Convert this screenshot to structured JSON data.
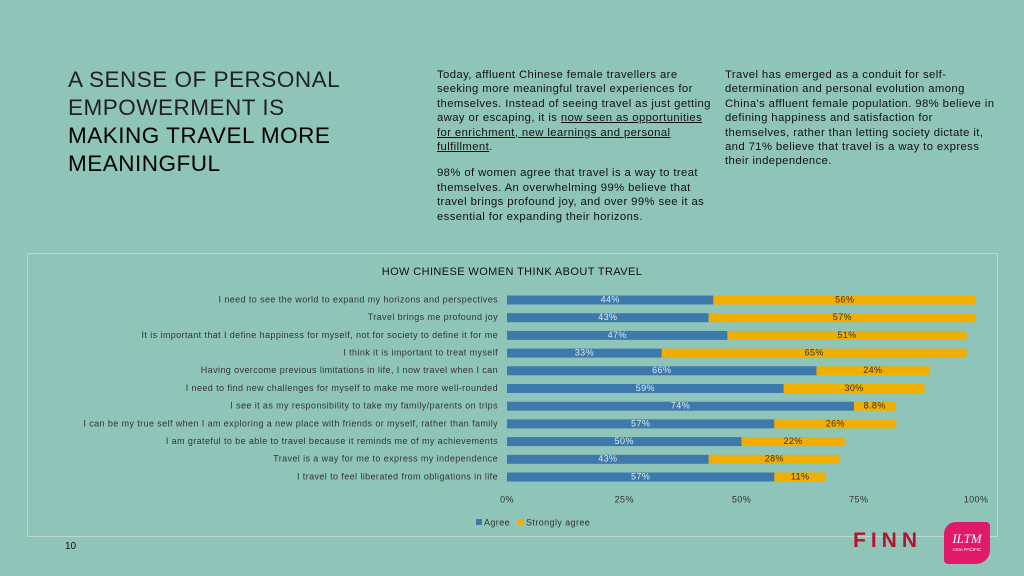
{
  "title_lines": [
    "A SENSE OF PERSONAL",
    "EMPOWERMENT IS",
    "MAKING TRAVEL MORE",
    "MEANINGFUL"
  ],
  "column_1": {
    "paragraph_1": [
      "Today, affluent Chinese female travellers are seeking more meaningful travel experiences for themselves. Instead of seeing travel as just getting away or escaping, it is ",
      "now seen as opportunities for enrichment, new learnings and personal fulfillment",
      "."
    ],
    "paragraph_2": "98% of women agree that travel is a way to treat themselves. An overwhelming 99% believe that travel brings profound joy, and over 99% see it as essential for expanding their horizons."
  },
  "column_2": "Travel has emerged as a conduit for self-determination and personal evolution among China's affluent female population. 98% believe in defining happiness and satisfaction for themselves, rather than letting society dictate it, and 71% believe that travel is a way to express their independence.",
  "chart_data": {
    "type": "stacked_bar_horizontal",
    "title": "HOW CHINESE WOMEN THINK ABOUT TRAVEL",
    "categories": [
      "I need to see the world to expand my horizons and perspectives",
      "Travel brings me profound joy",
      "It is important that I define happiness for myself, not for society to define it for me",
      "I think it is important to treat myself",
      "Having overcome previous limitations in life, I now travel when I can",
      "I need to find new challenges for myself to make me more well-rounded",
      "I see it as my responsibility to take my family/parents on trips",
      "I can be my true self when I am exploring a new place with friends or myself, rather than family",
      "I am grateful to be able to travel because it reminds me of my achievements",
      "Travel is a way for me to express my independence",
      "I travel to feel liberated from obligations in life"
    ],
    "series": [
      {
        "name": "Agree",
        "color": "#3d7aab",
        "values": [
          44,
          43,
          47,
          33,
          66,
          59,
          74,
          57,
          50,
          43,
          57
        ],
        "value_labels": [
          "44%",
          "43%",
          "47%",
          "33%",
          "66%",
          "59%",
          "74%",
          "57%",
          "50%",
          "43%",
          "57%"
        ]
      },
      {
        "name": "Strongly agree",
        "color": "#f0ae00",
        "values": [
          56,
          57,
          51,
          65,
          24,
          30,
          8.8,
          26,
          22,
          28,
          11
        ],
        "value_labels": [
          "56%",
          "57%",
          "51%",
          "65%",
          "24%",
          "30%",
          "8.8%",
          "26%",
          "22%",
          "28%",
          "11%"
        ]
      }
    ],
    "xlim": [
      0,
      100
    ],
    "xticks": [
      {
        "value": 0,
        "label": "0%"
      },
      {
        "value": 25,
        "label": "25%"
      },
      {
        "value": 50,
        "label": "50%"
      },
      {
        "value": 75,
        "label": "75%"
      },
      {
        "value": 100,
        "label": "100%"
      }
    ],
    "legend": "bottom"
  },
  "page_number": "10",
  "logos": {
    "finn": "FINN",
    "iltm": "ILTM",
    "iltm_sub": "ASIA PACIFIC"
  }
}
